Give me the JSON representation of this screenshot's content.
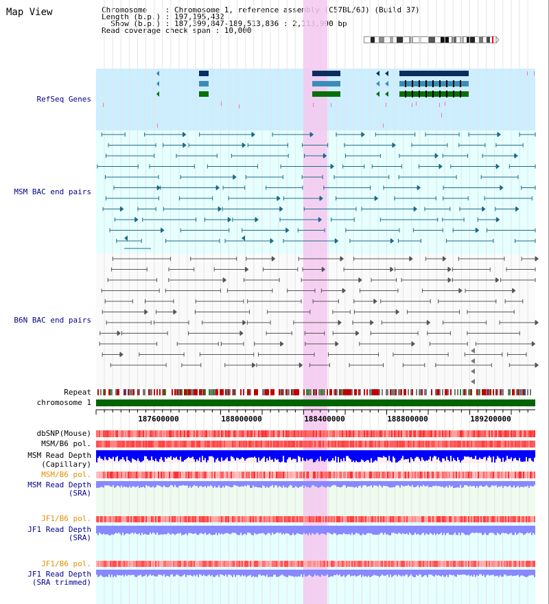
{
  "view": {
    "title": "Map View",
    "info_lines": [
      "Chromosome    : Chromosome 1, reference assembly (C57BL/6J) (Build 37)",
      "Length (b.p.) : 197,195,432",
      "  Show (b.p.) : 187,399,847-189,513,836 : 2,113,990 bp",
      "Read coverage check span : 10,000"
    ]
  },
  "tracks": {
    "refseq": "RefSeq Genes",
    "msm_bac": "MSM BAC end pairs",
    "b6n_bac": "B6N BAC end pairs",
    "repeat": "Repeat",
    "chromosome": "chromosome 1",
    "dbsnp": "dbSNP(Mouse)",
    "msm_pol_cap": "MSM/B6 pol.",
    "msm_depth_cap": "MSM Read Depth",
    "msm_depth_cap_sub": "(Capillary)",
    "msm_pol_sra": "MSM/B6 pol.",
    "msm_depth_sra": "MSM Read Depth",
    "msm_depth_sra_sub": "(SRA)",
    "jf1_pol_sra": "JF1/B6 pol.",
    "jf1_depth_sra": "JF1 Read Depth",
    "jf1_depth_sra_sub": "(SRA)",
    "jf1_pol_trim": "JF1/B6 pol.",
    "jf1_depth_trim": "JF1 Read Depth",
    "jf1_depth_trim_sub": "(SRA trimmed)"
  },
  "axis": {
    "ticks": [
      "187600000",
      "188000000",
      "188400000",
      "188800000",
      "189200000"
    ]
  },
  "colors": {
    "refseq_bg": "#cceeff",
    "bac_bg": "#e6ffff",
    "highlight": "#f5c8f0",
    "msm_line": "#1c6b87",
    "b6n_line": "#555555",
    "chromosome": "#006400",
    "depth_dark": "#0000ff",
    "depth_light": "#8888ff",
    "snp_red": "#ff0000"
  }
}
